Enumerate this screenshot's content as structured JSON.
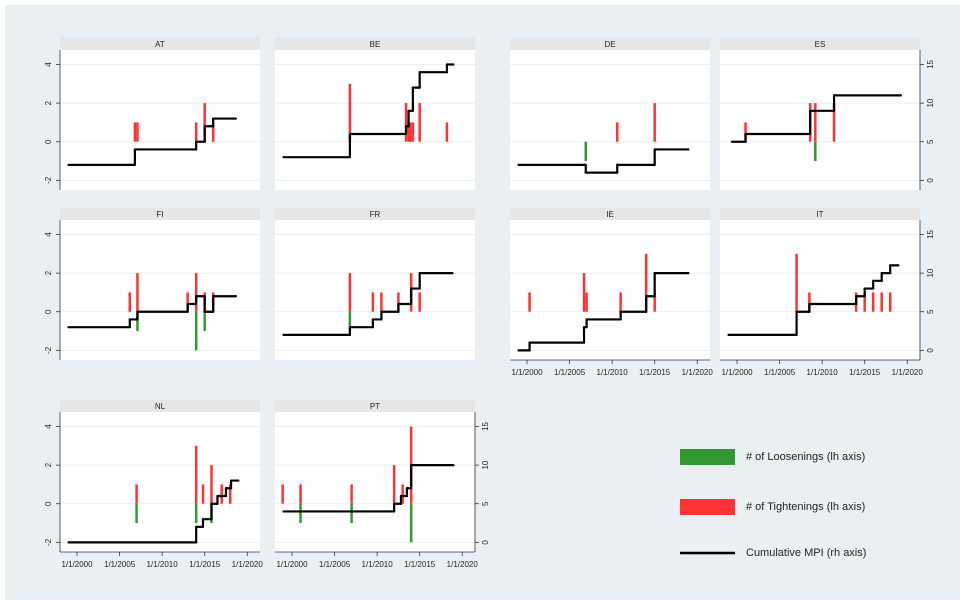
{
  "chart_data": {
    "type": "small-multiples",
    "step": true,
    "grid": true,
    "xlim": [
      1998,
      2021.5
    ],
    "xticks": [
      {
        "value": 2000,
        "label": "1/1/2000"
      },
      {
        "value": 2005,
        "label": "1/1/2005"
      },
      {
        "value": 2010,
        "label": "1/1/2010"
      },
      {
        "value": 2015,
        "label": "1/1/2015"
      },
      {
        "value": 2020,
        "label": "1/1/2020"
      }
    ],
    "ylim": [
      -2.5,
      4.75
    ],
    "yticks": [
      -2,
      0,
      2,
      4
    ],
    "y2lim": [
      -1.25,
      16.875
    ],
    "y2ticks": [
      0,
      5,
      10,
      15
    ],
    "series": [
      {
        "name": "# of Loosenings (lh axis)",
        "color": "#339933"
      },
      {
        "name": "# of Tightenings (lh axis)",
        "color": "#ff3333"
      },
      {
        "name": "Cumulative MPI (rh axis)",
        "color": "#000000",
        "axis": "y2"
      }
    ],
    "panels": [
      {
        "title": "AT",
        "left_axis": true,
        "right_axis": false,
        "x_axis": false,
        "loosenings": {
          "x": [],
          "values": []
        },
        "tightenings": {
          "x": [
            2006.8,
            2007.1,
            2014,
            2015,
            2016
          ],
          "values": [
            1,
            1,
            1,
            2,
            1
          ]
        },
        "mpi": {
          "x": [
            1999,
            2006.8,
            2014,
            2015,
            2016,
            2018.6
          ],
          "values": [
            2,
            4,
            5,
            7,
            8,
            8
          ]
        }
      },
      {
        "title": "BE",
        "left_axis": false,
        "right_axis": false,
        "x_axis": false,
        "loosenings": {
          "x": [],
          "values": []
        },
        "tightenings": {
          "x": [
            2006.8,
            2013.4,
            2013.7,
            2013.9,
            2014.2,
            2015,
            2018.2
          ],
          "values": [
            3,
            2,
            1,
            1,
            1,
            2,
            1
          ]
        },
        "mpi": {
          "x": [
            1999,
            2006.8,
            2013.4,
            2013.7,
            2014.2,
            2015,
            2018.2,
            2018.9
          ],
          "values": [
            3,
            6,
            7,
            9,
            12,
            14,
            15,
            15
          ]
        }
      },
      {
        "title": "DE",
        "left_axis": false,
        "right_axis": false,
        "x_axis": false,
        "loosenings": {
          "x": [
            2006.9
          ],
          "values": [
            -1
          ]
        },
        "tightenings": {
          "x": [
            2010.6,
            2015
          ],
          "values": [
            1,
            2
          ]
        },
        "mpi": {
          "x": [
            1999,
            2006.9,
            2010.6,
            2015,
            2018.9
          ],
          "values": [
            2,
            1,
            2,
            4,
            4
          ]
        }
      },
      {
        "title": "ES",
        "left_axis": false,
        "right_axis": true,
        "x_axis": false,
        "loosenings": {
          "x": [
            2009.2
          ],
          "values": [
            -1
          ]
        },
        "tightenings": {
          "x": [
            2001,
            2008.6,
            2009.2,
            2011.4
          ],
          "values": [
            1,
            2,
            2,
            2
          ]
        },
        "mpi": {
          "x": [
            1999.4,
            2001,
            2008.6,
            2009.2,
            2011.4,
            2019.2
          ],
          "values": [
            5,
            6,
            9,
            9,
            11,
            11
          ]
        }
      },
      {
        "title": "FI",
        "left_axis": true,
        "right_axis": false,
        "x_axis": false,
        "loosenings": {
          "x": [
            2007.1,
            2014,
            2015
          ],
          "values": [
            -1,
            -2,
            -1
          ]
        },
        "tightenings": {
          "x": [
            2006.2,
            2007.1,
            2013,
            2014,
            2015,
            2016
          ],
          "values": [
            1,
            2,
            1,
            2,
            1,
            1
          ]
        },
        "mpi": {
          "x": [
            1999,
            2006.2,
            2007.1,
            2013,
            2014,
            2015,
            2016,
            2018.6
          ],
          "values": [
            3,
            4,
            5,
            6,
            7,
            5,
            7,
            7
          ]
        }
      },
      {
        "title": "FR",
        "left_axis": false,
        "right_axis": false,
        "x_axis": false,
        "loosenings": {
          "x": [
            2006.8
          ],
          "values": [
            -1
          ]
        },
        "tightenings": {
          "x": [
            2006.8,
            2009.5,
            2010.5,
            2012.5,
            2014,
            2015
          ],
          "values": [
            2,
            1,
            1,
            1,
            2,
            1
          ]
        },
        "mpi": {
          "x": [
            1999,
            2006.8,
            2009.5,
            2010.5,
            2012.5,
            2014,
            2015,
            2018.8
          ],
          "values": [
            2,
            3,
            4,
            5,
            6,
            8,
            10,
            10
          ]
        }
      },
      {
        "title": "IE",
        "left_axis": false,
        "right_axis": false,
        "x_axis": true,
        "loosenings": {
          "x": [],
          "values": []
        },
        "tightenings": {
          "x": [
            2000.3,
            2006.7,
            2007,
            2011,
            2014,
            2015
          ],
          "values": [
            1,
            2,
            1,
            1,
            3,
            1
          ]
        },
        "mpi": {
          "x": [
            1999,
            2000.3,
            2006.7,
            2007,
            2011,
            2014,
            2015,
            2018.9
          ],
          "values": [
            0,
            1,
            3,
            4,
            5,
            7,
            10,
            10
          ]
        }
      },
      {
        "title": "IT",
        "left_axis": false,
        "right_axis": true,
        "x_axis": true,
        "loosenings": {
          "x": [],
          "values": []
        },
        "tightenings": {
          "x": [
            2007,
            2008.5,
            2014,
            2015,
            2016,
            2017,
            2018
          ],
          "values": [
            3,
            1,
            1,
            1,
            1,
            1,
            1
          ]
        },
        "mpi": {
          "x": [
            1999,
            2007,
            2008.5,
            2014,
            2015,
            2016,
            2017,
            2018,
            2018.9
          ],
          "values": [
            2,
            5,
            6,
            7,
            8,
            9,
            10,
            11,
            11
          ]
        }
      },
      {
        "title": "NL",
        "left_axis": true,
        "right_axis": false,
        "x_axis": true,
        "loosenings": {
          "x": [
            2007,
            2014,
            2015.8
          ],
          "values": [
            -1,
            -1,
            -1
          ]
        },
        "tightenings": {
          "x": [
            2007,
            2014,
            2014.8,
            2015.8,
            2017,
            2018
          ],
          "values": [
            1,
            3,
            1,
            2,
            1,
            1
          ]
        },
        "mpi": {
          "x": [
            1999,
            2014,
            2014.8,
            2015.8,
            2016.5,
            2017.5,
            2018.1,
            2018.9
          ],
          "values": [
            0,
            2,
            3,
            5,
            6,
            7,
            8,
            8
          ]
        }
      },
      {
        "title": "PT",
        "left_axis": false,
        "right_axis": true,
        "x_axis": true,
        "loosenings": {
          "x": [
            2001,
            2007,
            2014
          ],
          "values": [
            -1,
            -1,
            -2
          ]
        },
        "tightenings": {
          "x": [
            1998.9,
            2001,
            2007,
            2012,
            2013,
            2014
          ],
          "values": [
            1,
            1,
            1,
            2,
            1,
            4
          ]
        },
        "mpi": {
          "x": [
            1999,
            2012,
            2012.8,
            2013.5,
            2014,
            2018.9
          ],
          "values": [
            4,
            5,
            6,
            7,
            10,
            10
          ]
        }
      }
    ]
  }
}
